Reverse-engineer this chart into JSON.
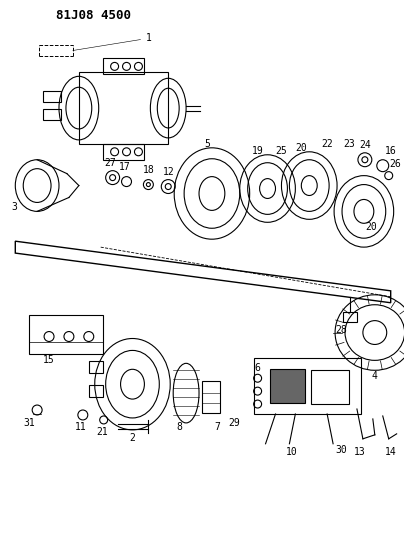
{
  "title": "81J08 4500",
  "bg_color": "#ffffff",
  "line_color": "#000000",
  "title_fontsize": 9,
  "label_fontsize": 6.5,
  "fig_width": 4.05,
  "fig_height": 5.33,
  "dpi": 100
}
